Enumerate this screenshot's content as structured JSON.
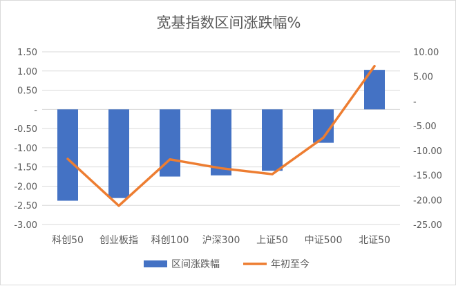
{
  "chart_data": {
    "type": "bar",
    "title": "宽基指数区间涨跌幅%",
    "categories": [
      "科创50",
      "创业板指",
      "科创100",
      "沪深300",
      "上证50",
      "中证500",
      "北证50"
    ],
    "series": [
      {
        "name": "区间涨跌幅",
        "type": "bar",
        "axis": "left",
        "color": "#4472C4",
        "values": [
          -2.38,
          -2.31,
          -1.75,
          -1.72,
          -1.6,
          -0.87,
          1.03
        ]
      },
      {
        "name": "年初至今",
        "type": "line",
        "axis": "right",
        "color": "#ED7D31",
        "values": [
          -11.7,
          -21.2,
          -11.8,
          -13.6,
          -14.8,
          -7.4,
          7.1
        ]
      }
    ],
    "y_left": {
      "ylim": [
        -3.0,
        1.5
      ],
      "ticks": [
        1.5,
        1.0,
        0.5,
        0.0,
        -0.5,
        -1.0,
        -1.5,
        -2.0,
        -2.5,
        -3.0
      ],
      "tick_labels": [
        "1.50",
        "1.00",
        "0.50",
        "-",
        "-0.50",
        "-1.00",
        "-1.50",
        "-2.00",
        "-2.50",
        "-3.00"
      ]
    },
    "y_right": {
      "ylim": [
        -25.0,
        10.0
      ],
      "ticks": [
        10,
        5,
        0,
        -5,
        -10,
        -15,
        -20,
        -25
      ],
      "tick_labels": [
        "10.00",
        "5.00",
        "-",
        "-5.00",
        "-10.00",
        "-15.00",
        "-20.00",
        "-25.00"
      ]
    },
    "grid": true,
    "legend": "bottom"
  }
}
